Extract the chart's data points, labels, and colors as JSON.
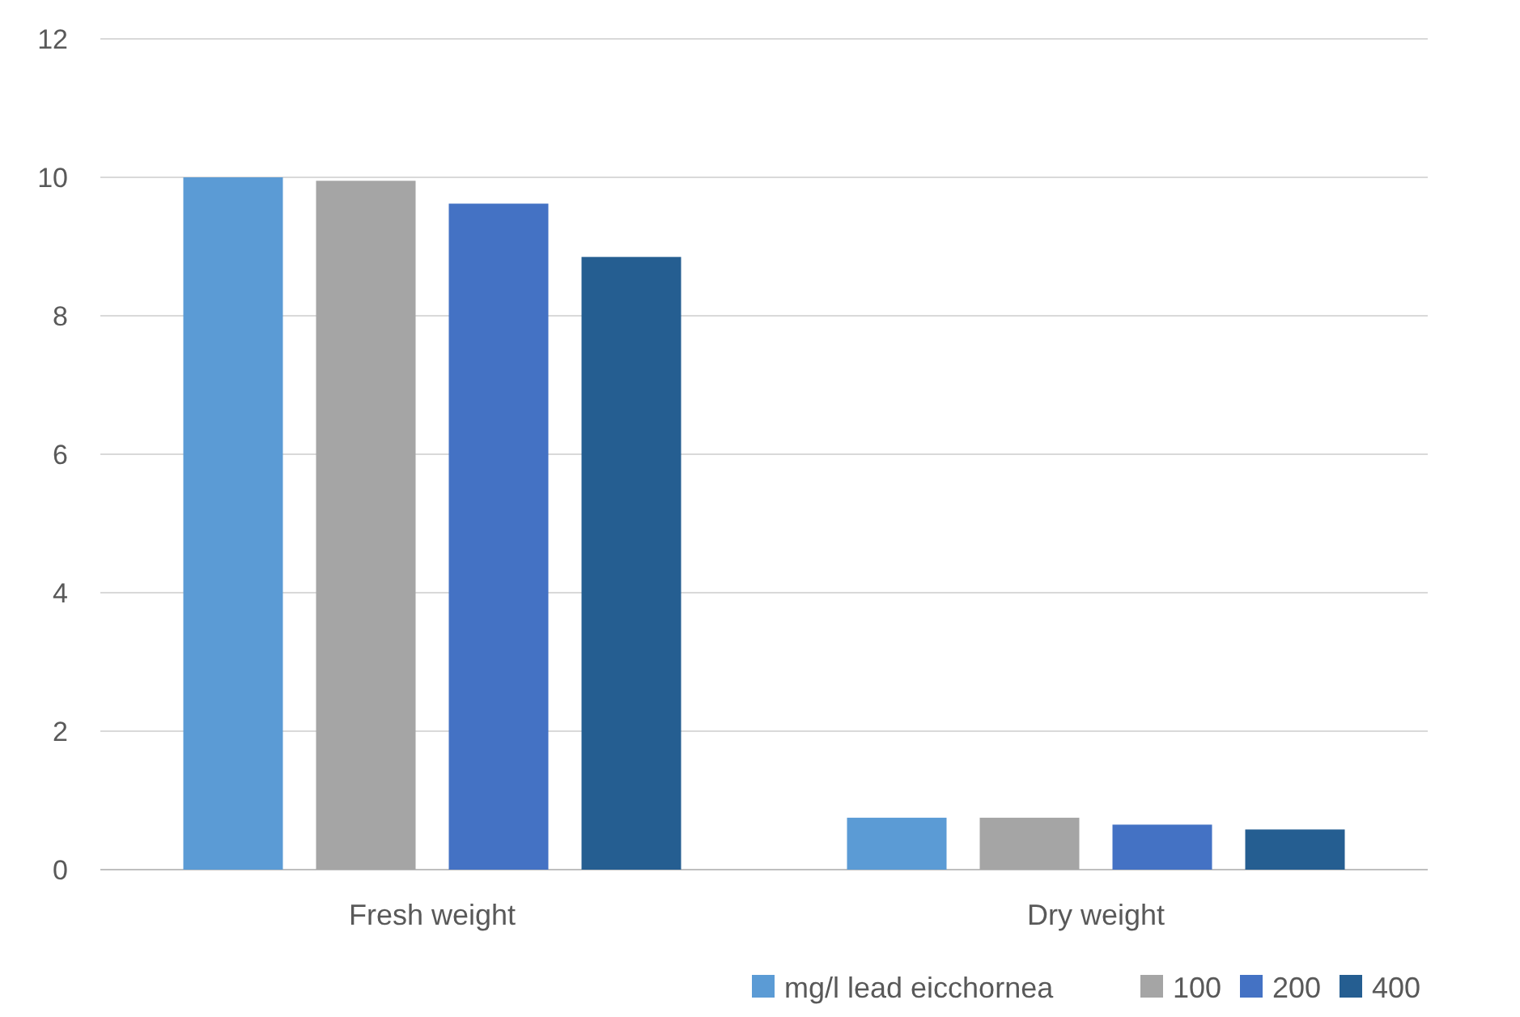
{
  "chart_data": {
    "type": "bar",
    "categories": [
      "Fresh weight",
      "Dry weight"
    ],
    "series": [
      {
        "name": "mg/l lead eicchornea",
        "color": "#5b9bd5",
        "values": [
          10.0,
          0.75
        ]
      },
      {
        "name": "100",
        "color": "#a5a5a5",
        "values": [
          9.95,
          0.75
        ]
      },
      {
        "name": "200",
        "color": "#4472c4",
        "values": [
          9.62,
          0.65
        ]
      },
      {
        "name": "400",
        "color": "#255e91",
        "values": [
          8.85,
          0.58
        ]
      }
    ],
    "ylim": [
      0,
      12
    ],
    "yticks": [
      0,
      2,
      4,
      6,
      8,
      10,
      12
    ],
    "grid": "y",
    "legend": "bottom right"
  }
}
